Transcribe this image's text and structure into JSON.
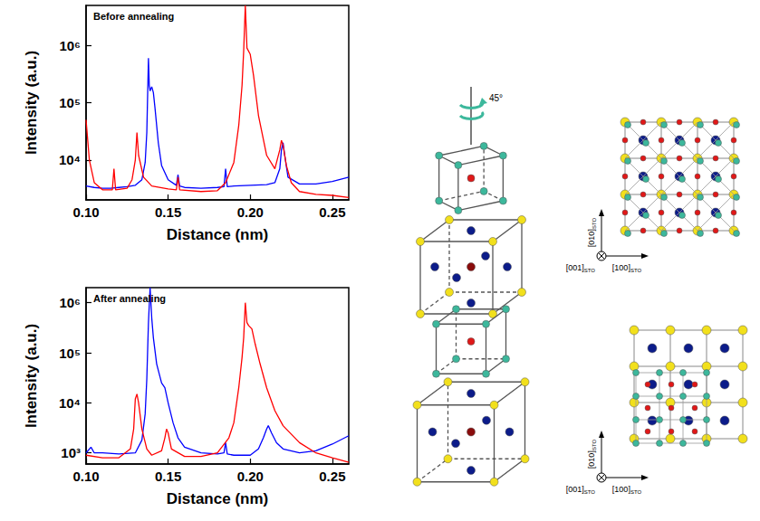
{
  "chart_data": [
    {
      "type": "line",
      "annotation": "Before annealing",
      "x_label": "Distance (nm)",
      "y_label": "Intensity (a.u.)",
      "log": "y",
      "grid": false,
      "xlim": [
        0.1,
        0.26
      ],
      "xticks": [
        {
          "value": 0.1,
          "label": "0.10"
        },
        0.15,
        {
          "value": 0.2,
          "label": "0.20"
        },
        0.25
      ],
      "ylim": [
        2000,
        5000000
      ],
      "yticks": [
        {
          "value": 10000,
          "label": "10⁴"
        },
        {
          "value": 100000,
          "label": "10⁵"
        },
        {
          "value": 1000000,
          "label": "10⁶"
        }
      ],
      "series": [
        {
          "color": "#0000ff",
          "x": [
            0.1,
            0.105,
            0.11,
            0.115,
            0.12,
            0.125,
            0.13,
            0.134,
            0.136,
            0.137,
            0.138,
            0.1385,
            0.139,
            0.14,
            0.141,
            0.142,
            0.144,
            0.146,
            0.15,
            0.155,
            0.156,
            0.157,
            0.16,
            0.17,
            0.18,
            0.184,
            0.185,
            0.186,
            0.19,
            0.2,
            0.21,
            0.215,
            0.218,
            0.219,
            0.22,
            0.221,
            0.223,
            0.23,
            0.24,
            0.25,
            0.26
          ],
          "values": [
            3500,
            3300,
            3200,
            3200,
            3300,
            3400,
            3600,
            4500,
            9000,
            30000,
            600000,
            200000,
            160000,
            190000,
            150000,
            80000,
            20000,
            8000,
            4500,
            3600,
            5500,
            3500,
            3300,
            3200,
            3300,
            3400,
            7000,
            3400,
            3500,
            3600,
            3700,
            4000,
            7000,
            15000,
            20000,
            12000,
            5000,
            3800,
            3800,
            4200,
            5000
          ]
        },
        {
          "color": "#ff0000",
          "x": [
            0.1,
            0.102,
            0.105,
            0.11,
            0.116,
            0.117,
            0.118,
            0.125,
            0.128,
            0.13,
            0.131,
            0.132,
            0.135,
            0.14,
            0.15,
            0.155,
            0.156,
            0.157,
            0.17,
            0.18,
            0.185,
            0.19,
            0.193,
            0.195,
            0.196,
            0.197,
            0.198,
            0.2,
            0.202,
            0.205,
            0.21,
            0.215,
            0.218,
            0.219,
            0.22,
            0.222,
            0.225,
            0.23,
            0.24,
            0.25,
            0.26
          ],
          "values": [
            50000,
            10000,
            4000,
            3000,
            3000,
            7000,
            3000,
            3200,
            4500,
            10000,
            30000,
            12000,
            5000,
            3500,
            3100,
            3000,
            5000,
            3000,
            2800,
            2900,
            4000,
            9000,
            40000,
            200000,
            800000,
            5000000,
            900000,
            700000,
            300000,
            60000,
            12000,
            7000,
            15000,
            22000,
            18000,
            8000,
            4000,
            2800,
            2500,
            2400,
            2200
          ]
        }
      ]
    },
    {
      "type": "line",
      "annotation": "After annealing",
      "x_label": "Distance (nm)",
      "y_label": "Intensity (a.u.)",
      "log": "y",
      "grid": false,
      "xlim": [
        0.1,
        0.26
      ],
      "xticks": [
        {
          "value": 0.1,
          "label": "0.10"
        },
        0.15,
        {
          "value": 0.2,
          "label": "0.20"
        },
        0.25
      ],
      "ylim": [
        600,
        2000000
      ],
      "yticks": [
        {
          "value": 1000,
          "label": "10³"
        },
        {
          "value": 10000,
          "label": "10⁴"
        },
        {
          "value": 100000,
          "label": "10⁵"
        },
        {
          "value": 1000000,
          "label": "10⁶"
        }
      ],
      "series": [
        {
          "color": "#0000ff",
          "x": [
            0.1,
            0.103,
            0.105,
            0.11,
            0.12,
            0.13,
            0.134,
            0.136,
            0.137,
            0.138,
            0.139,
            0.14,
            0.141,
            0.143,
            0.146,
            0.148,
            0.15,
            0.153,
            0.156,
            0.16,
            0.17,
            0.18,
            0.184,
            0.185,
            0.186,
            0.19,
            0.2,
            0.205,
            0.208,
            0.21,
            0.211,
            0.213,
            0.216,
            0.22,
            0.23,
            0.24,
            0.25,
            0.26
          ],
          "values": [
            1000,
            1300,
            1000,
            1000,
            950,
            1000,
            1800,
            6000,
            30000,
            400000,
            2000000,
            500000,
            200000,
            60000,
            25000,
            20000,
            10000,
            4000,
            2000,
            1300,
            1000,
            950,
            1000,
            1600,
            950,
            900,
            900,
            1200,
            2000,
            3000,
            3500,
            2500,
            1600,
            1200,
            1000,
            1100,
            1500,
            2200
          ]
        },
        {
          "color": "#ff0000",
          "x": [
            0.1,
            0.11,
            0.12,
            0.127,
            0.129,
            0.13,
            0.131,
            0.132,
            0.134,
            0.137,
            0.14,
            0.146,
            0.148,
            0.149,
            0.15,
            0.152,
            0.16,
            0.17,
            0.18,
            0.187,
            0.19,
            0.193,
            0.195,
            0.196,
            0.197,
            0.198,
            0.199,
            0.201,
            0.203,
            0.206,
            0.21,
            0.215,
            0.22,
            0.23,
            0.24,
            0.25,
            0.26
          ],
          "values": [
            900,
            800,
            800,
            1200,
            3000,
            12000,
            15000,
            10000,
            3000,
            1200,
            900,
            1100,
            2000,
            3000,
            2500,
            1200,
            850,
            850,
            1000,
            2000,
            4000,
            20000,
            80000,
            200000,
            1000000,
            400000,
            350000,
            300000,
            150000,
            60000,
            20000,
            7000,
            3500,
            1600,
            1000,
            800,
            650
          ]
        }
      ]
    }
  ],
  "diagrams": {
    "rotation_label": "45°",
    "axis_labels": {
      "x": "[100]",
      "y": "[010]",
      "z": "[001]"
    },
    "axis_subscript": "STO"
  }
}
